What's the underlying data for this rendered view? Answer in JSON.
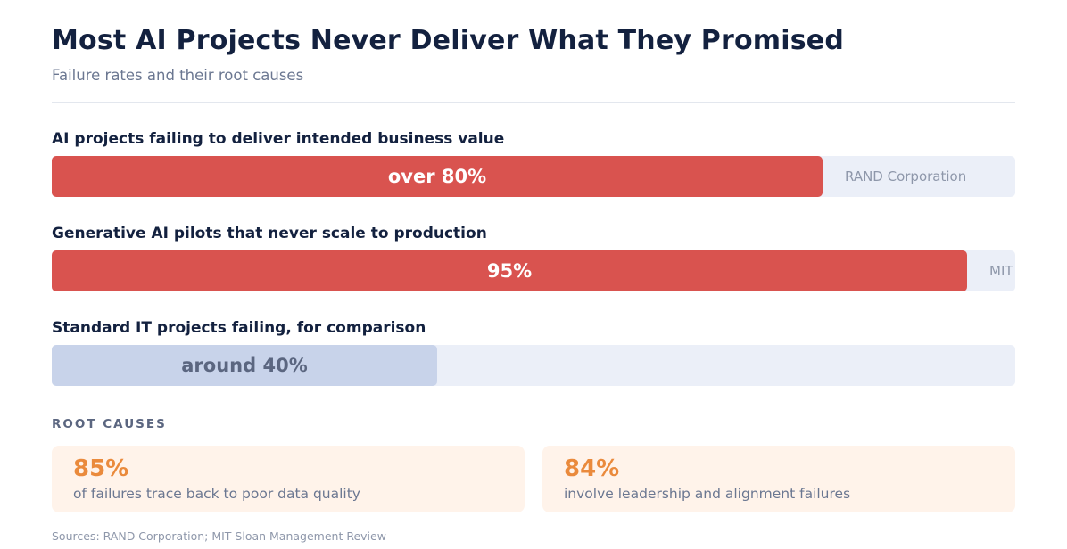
{
  "header": {
    "title": "Most AI Projects Never Deliver What They Promised",
    "subtitle": "Failure rates and their root causes"
  },
  "colors": {
    "ai_fill": "#d9534f",
    "comparison_fill": "#c8d3ea",
    "comparison_text": "#5b6680",
    "track": "#ebeff8",
    "accent_orange": "#ea8a3c",
    "card_bg": "#fff3ea"
  },
  "chart_data": {
    "type": "bar",
    "orientation": "horizontal",
    "xlim": [
      0,
      100
    ],
    "categories": [
      "AI projects failing to deliver intended business value",
      "Generative AI pilots that never scale to production",
      "Standard IT projects failing, for comparison"
    ],
    "values": [
      80,
      95,
      40
    ],
    "value_labels": [
      "over 80%",
      "95%",
      "around 40%"
    ],
    "sources": [
      "RAND Corporation",
      "MIT",
      ""
    ]
  },
  "root_causes": {
    "heading": "ROOT CAUSES",
    "items": [
      {
        "value": "85%",
        "text": "of failures trace back to poor data quality"
      },
      {
        "value": "84%",
        "text": "involve leadership and alignment failures"
      }
    ]
  },
  "footer": {
    "sources": "Sources: RAND Corporation; MIT Sloan Management Review"
  }
}
